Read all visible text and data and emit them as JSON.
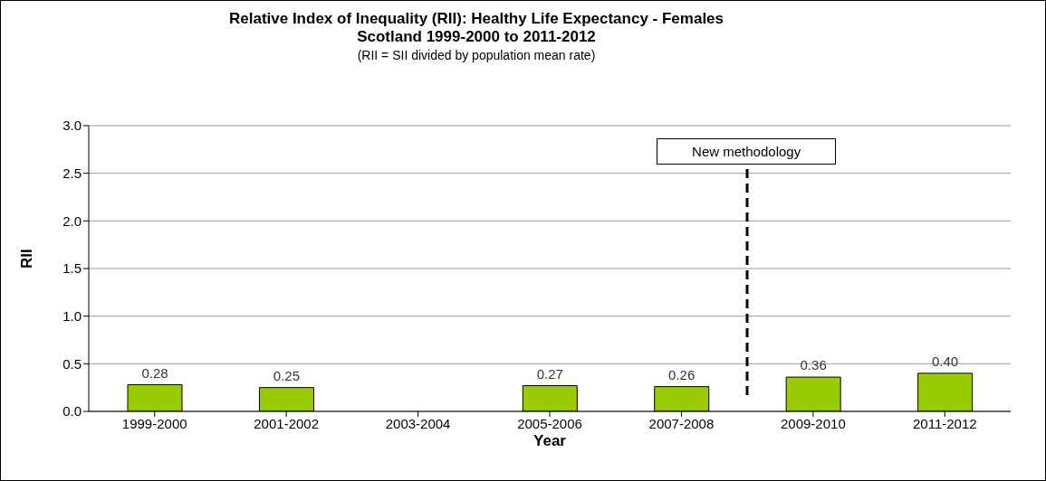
{
  "chart_data": {
    "type": "bar",
    "title": "Relative Index of Inequality (RII):  Healthy Life Expectancy - Females\nScotland 1999-2000 to 2011-2012",
    "subtitle": "(RII = SII divided by population mean rate)",
    "xlabel": "Year",
    "ylabel": "RII",
    "categories": [
      "1999-2000",
      "2001-2002",
      "2003-2004",
      "2005-2006",
      "2007-2008",
      "2009-2010",
      "2011-2012"
    ],
    "values": [
      0.28,
      0.25,
      null,
      0.27,
      0.26,
      0.36,
      0.4
    ],
    "value_labels": [
      "0.28",
      "0.25",
      null,
      "0.27",
      "0.26",
      "0.36",
      "0.40"
    ],
    "color": "#99cc00",
    "ylim": [
      0,
      3
    ],
    "yticks": [
      {
        "value": 0,
        "label": "0.0"
      },
      {
        "value": 0.5,
        "label": "0.5"
      },
      {
        "value": 1,
        "label": "1.0"
      },
      {
        "value": 1.5,
        "label": "1.5"
      },
      {
        "value": 2,
        "label": "2.0"
      },
      {
        "value": 2.5,
        "label": "2.5"
      },
      {
        "value": 3,
        "label": "3.0"
      }
    ],
    "grid": "y",
    "legend": false,
    "annotations": [
      "New methodology"
    ]
  }
}
